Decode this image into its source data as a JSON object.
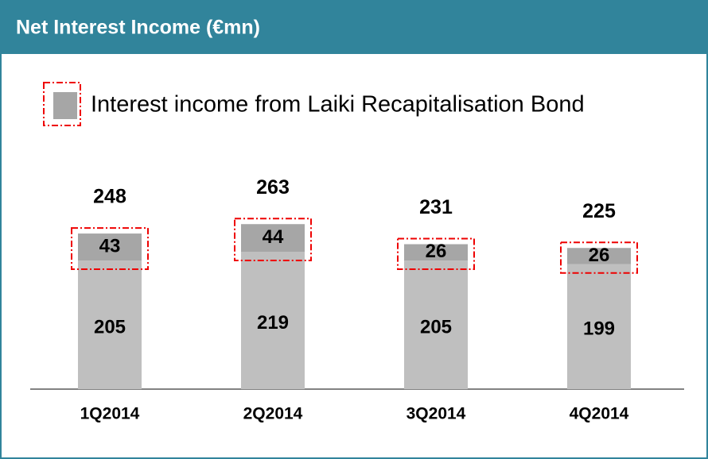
{
  "chart_data": {
    "type": "stacked_bar",
    "title": "Net Interest Income (€mn)",
    "categories": [
      "1Q2014",
      "2Q2014",
      "3Q2014",
      "4Q2014"
    ],
    "series": [
      {
        "color": "#bfbfbf",
        "values": [
          205,
          219,
          205,
          199
        ]
      },
      {
        "name": "Interest income from Laiki Recapitalisation Bond",
        "color": "#a6a6a6",
        "values": [
          43,
          44,
          26,
          26
        ]
      }
    ],
    "totals": [
      248,
      263,
      231,
      225
    ]
  }
}
